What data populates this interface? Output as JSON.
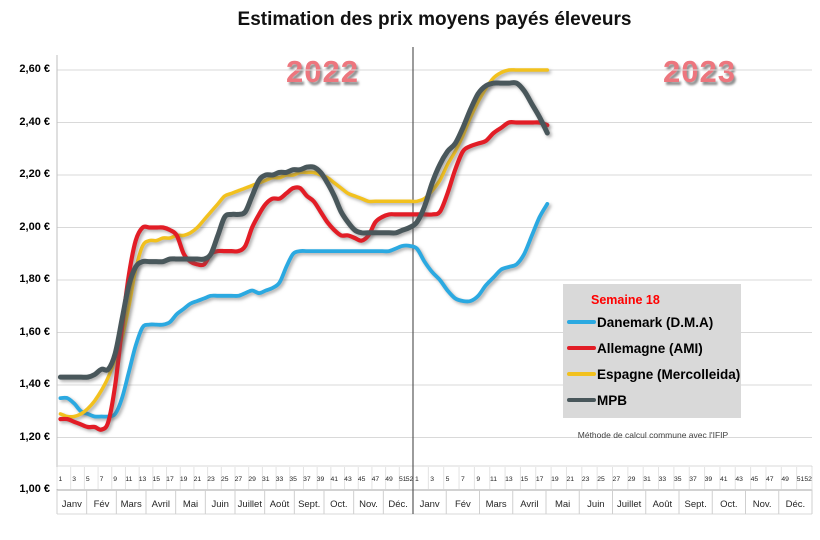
{
  "title": "Estimation des prix moyens payés éleveurs",
  "year_labels": [
    "2022",
    "2023"
  ],
  "legend": {
    "week_label": "Semaine 18",
    "items": [
      {
        "label": "Danemark (D.M.A)",
        "color": "#2BA9E1"
      },
      {
        "label": "Allemagne (AMI)",
        "color": "#E21D26"
      },
      {
        "label": "Espagne (Mercolleida)",
        "color": "#F2C11E"
      },
      {
        "label": "MPB",
        "color": "#49575B"
      }
    ]
  },
  "footnote": "Méthode de calcul commune avec l'IFIP",
  "chart_data": {
    "type": "line",
    "title": "Estimation des prix moyens payés éleveurs",
    "x_unit": "semaine",
    "ylim": [
      1.0,
      2.6
    ],
    "ytick_step": 0.2,
    "grid": true,
    "legend_position": "right-middle",
    "years": [
      "2022",
      "2023"
    ],
    "week_tick_labels": [
      1,
      3,
      5,
      7,
      9,
      11,
      13,
      15,
      17,
      19,
      21,
      23,
      25,
      27,
      29,
      31,
      33,
      35,
      37,
      39,
      41,
      43,
      45,
      47,
      49,
      51,
      52
    ],
    "months": [
      "Janv",
      "Fév",
      "Mars",
      "Avril",
      "Mai",
      "Juin",
      "Juillet",
      "Août",
      "Sept.",
      "Oct.",
      "Nov.",
      "Déc."
    ],
    "ytick_labels": [
      {
        "label": "2,60 €",
        "value": 2.6
      },
      {
        "label": "2,40 €",
        "value": 2.4
      },
      {
        "label": "2,20 €",
        "value": 2.2
      },
      {
        "label": "2,00 €",
        "value": 2.0
      },
      {
        "label": "1,80 €",
        "value": 1.8
      },
      {
        "label": "1,60 €",
        "value": 1.6
      },
      {
        "label": "1,40 €",
        "value": 1.4
      },
      {
        "label": "1,20 €",
        "value": 1.2
      },
      {
        "label": "1,00 €",
        "value": 1.0
      }
    ],
    "series": [
      {
        "name": "Danemark (D.M.A)",
        "color": "#2BA9E1",
        "width": 3.8,
        "values_2022": [
          1.35,
          1.35,
          1.33,
          1.3,
          1.29,
          1.28,
          1.28,
          1.28,
          1.29,
          1.35,
          1.45,
          1.55,
          1.62,
          1.63,
          1.63,
          1.63,
          1.64,
          1.67,
          1.69,
          1.71,
          1.72,
          1.73,
          1.74,
          1.74,
          1.74,
          1.74,
          1.74,
          1.75,
          1.76,
          1.75,
          1.76,
          1.77,
          1.79,
          1.85,
          1.9,
          1.91,
          1.91,
          1.91,
          1.91,
          1.91,
          1.91,
          1.91,
          1.91,
          1.91,
          1.91,
          1.91,
          1.91,
          1.91,
          1.91,
          1.92,
          1.93,
          1.93
        ],
        "values_2023": [
          1.92,
          1.87,
          1.83,
          1.8,
          1.76,
          1.73,
          1.72,
          1.72,
          1.74,
          1.78,
          1.81,
          1.84,
          1.85,
          1.86,
          1.9,
          1.97,
          2.04,
          2.09
        ]
      },
      {
        "name": "Allemagne (AMI)",
        "color": "#E21D26",
        "width": 4.2,
        "values_2022": [
          1.27,
          1.27,
          1.26,
          1.25,
          1.24,
          1.24,
          1.23,
          1.26,
          1.4,
          1.62,
          1.82,
          1.95,
          2.0,
          2.0,
          2.0,
          2.0,
          1.99,
          1.97,
          1.9,
          1.87,
          1.86,
          1.86,
          1.9,
          1.91,
          1.91,
          1.91,
          1.91,
          1.93,
          2.0,
          2.05,
          2.09,
          2.11,
          2.11,
          2.13,
          2.15,
          2.15,
          2.12,
          2.1,
          2.06,
          2.02,
          1.99,
          1.97,
          1.97,
          1.96,
          1.95,
          1.97,
          2.02,
          2.04,
          2.05,
          2.05,
          2.05,
          2.05
        ],
        "values_2023": [
          2.05,
          2.05,
          2.05,
          2.06,
          2.13,
          2.22,
          2.29,
          2.31,
          2.32,
          2.33,
          2.36,
          2.38,
          2.4,
          2.4,
          2.4,
          2.4,
          2.4,
          2.39
        ]
      },
      {
        "name": "Espagne (Mercolleida)",
        "color": "#F2C11E",
        "width": 3.5,
        "values_2022": [
          1.29,
          1.28,
          1.28,
          1.29,
          1.31,
          1.34,
          1.38,
          1.43,
          1.5,
          1.58,
          1.7,
          1.84,
          1.93,
          1.95,
          1.95,
          1.96,
          1.96,
          1.97,
          1.97,
          1.98,
          2.0,
          2.03,
          2.06,
          2.09,
          2.12,
          2.13,
          2.14,
          2.15,
          2.16,
          2.17,
          2.18,
          2.19,
          2.19,
          2.2,
          2.2,
          2.21,
          2.21,
          2.21,
          2.2,
          2.19,
          2.17,
          2.15,
          2.13,
          2.12,
          2.11,
          2.1,
          2.1,
          2.1,
          2.1,
          2.1,
          2.1,
          2.1
        ],
        "values_2023": [
          2.1,
          2.11,
          2.14,
          2.18,
          2.24,
          2.29,
          2.35,
          2.42,
          2.48,
          2.53,
          2.57,
          2.59,
          2.6,
          2.6,
          2.6,
          2.6,
          2.6,
          2.6
        ]
      },
      {
        "name": "MPB",
        "color": "#49575B",
        "width": 5,
        "values_2022": [
          1.43,
          1.43,
          1.43,
          1.43,
          1.43,
          1.44,
          1.46,
          1.46,
          1.52,
          1.65,
          1.78,
          1.85,
          1.87,
          1.87,
          1.87,
          1.87,
          1.88,
          1.88,
          1.88,
          1.88,
          1.88,
          1.88,
          1.9,
          1.97,
          2.04,
          2.05,
          2.05,
          2.06,
          2.12,
          2.18,
          2.2,
          2.2,
          2.21,
          2.21,
          2.22,
          2.22,
          2.23,
          2.23,
          2.21,
          2.17,
          2.12,
          2.06,
          2.02,
          1.99,
          1.98,
          1.98,
          1.98,
          1.98,
          1.98,
          1.98,
          1.99,
          2.0
        ],
        "values_2023": [
          2.02,
          2.08,
          2.17,
          2.24,
          2.29,
          2.32,
          2.38,
          2.45,
          2.51,
          2.54,
          2.55,
          2.55,
          2.55,
          2.55,
          2.52,
          2.47,
          2.42,
          2.36
        ]
      }
    ]
  }
}
